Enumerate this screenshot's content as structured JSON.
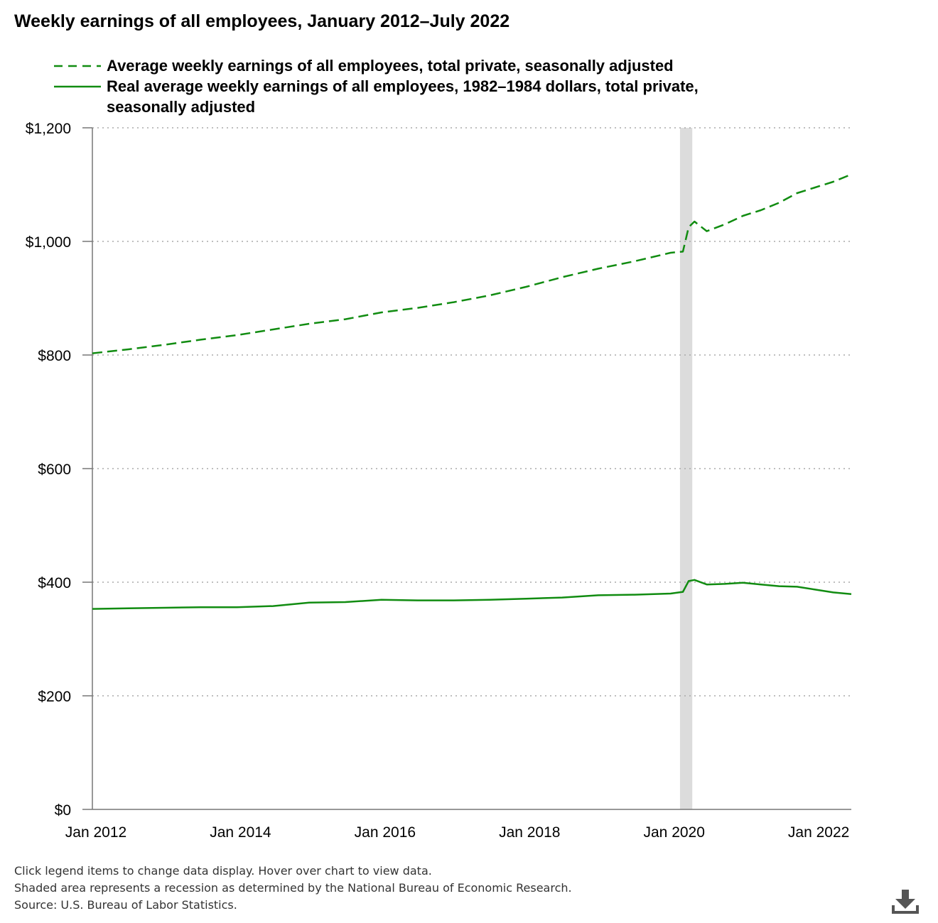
{
  "colors": {
    "series": "#118c11",
    "grid": "#aaaaaa",
    "recession": "#dcdcdc",
    "axis": "#777777"
  },
  "chart_data": {
    "type": "line",
    "title": "Weekly earnings of all employees, January 2012–July 2022",
    "xlabel": "",
    "ylabel": "",
    "x_ticks": [
      "Jan 2012",
      "Jan 2014",
      "Jan 2016",
      "Jan 2018",
      "Jan 2020",
      "Jan 2022"
    ],
    "x_tick_years": [
      2012,
      2014,
      2016,
      2018,
      2020,
      2022
    ],
    "x_range": [
      2012.0,
      2022.5
    ],
    "y_ticks": [
      "$0",
      "$200",
      "$400",
      "$600",
      "$800",
      "$1,000",
      "$1,200"
    ],
    "y_tick_values": [
      0,
      200,
      400,
      600,
      800,
      1000,
      1200
    ],
    "ylim": [
      0,
      1200
    ],
    "grid": true,
    "recession": {
      "start": 2020.13,
      "end": 2020.3
    },
    "series": [
      {
        "name": "Average weekly earnings of all employees, total private, seasonally adjusted",
        "style": "dashed",
        "points": [
          [
            2012.0,
            803
          ],
          [
            2012.5,
            810
          ],
          [
            2013.0,
            818
          ],
          [
            2013.5,
            827
          ],
          [
            2014.0,
            835
          ],
          [
            2014.5,
            845
          ],
          [
            2015.0,
            855
          ],
          [
            2015.5,
            863
          ],
          [
            2016.0,
            875
          ],
          [
            2016.5,
            883
          ],
          [
            2017.0,
            893
          ],
          [
            2017.5,
            905
          ],
          [
            2018.0,
            920
          ],
          [
            2018.5,
            937
          ],
          [
            2019.0,
            952
          ],
          [
            2019.5,
            965
          ],
          [
            2020.0,
            980
          ],
          [
            2020.17,
            982
          ],
          [
            2020.25,
            1025
          ],
          [
            2020.33,
            1035
          ],
          [
            2020.5,
            1018
          ],
          [
            2020.75,
            1030
          ],
          [
            2021.0,
            1045
          ],
          [
            2021.25,
            1055
          ],
          [
            2021.5,
            1068
          ],
          [
            2021.75,
            1085
          ],
          [
            2022.0,
            1095
          ],
          [
            2022.25,
            1105
          ],
          [
            2022.5,
            1118
          ]
        ]
      },
      {
        "name": "Real average weekly earnings of all employees, 1982–1984 dollars, total private, seasonally adjusted",
        "style": "solid",
        "points": [
          [
            2012.0,
            353
          ],
          [
            2012.5,
            354
          ],
          [
            2013.0,
            355
          ],
          [
            2013.5,
            356
          ],
          [
            2014.0,
            356
          ],
          [
            2014.5,
            358
          ],
          [
            2015.0,
            364
          ],
          [
            2015.5,
            365
          ],
          [
            2016.0,
            369
          ],
          [
            2016.5,
            368
          ],
          [
            2017.0,
            368
          ],
          [
            2017.5,
            369
          ],
          [
            2018.0,
            371
          ],
          [
            2018.5,
            373
          ],
          [
            2019.0,
            377
          ],
          [
            2019.5,
            378
          ],
          [
            2020.0,
            380
          ],
          [
            2020.17,
            383
          ],
          [
            2020.25,
            402
          ],
          [
            2020.33,
            404
          ],
          [
            2020.5,
            396
          ],
          [
            2020.75,
            397
          ],
          [
            2021.0,
            399
          ],
          [
            2021.25,
            396
          ],
          [
            2021.5,
            393
          ],
          [
            2021.75,
            392
          ],
          [
            2022.0,
            387
          ],
          [
            2022.25,
            382
          ],
          [
            2022.5,
            379
          ]
        ]
      }
    ]
  },
  "legend": [
    {
      "label": "Average weekly earnings of all employees, total private, seasonally adjusted"
    },
    {
      "label": "Real average weekly earnings of all employees, 1982–1984 dollars, total private, seasonally adjusted"
    }
  ],
  "footer": {
    "line1": "Click legend items to change data display. Hover over chart to view data.",
    "line2": "Shaded area represents a recession as determined by the National Bureau of Economic Research.",
    "line3": "Source: U.S. Bureau of Labor Statistics."
  },
  "icons": {
    "download": "download-icon"
  }
}
